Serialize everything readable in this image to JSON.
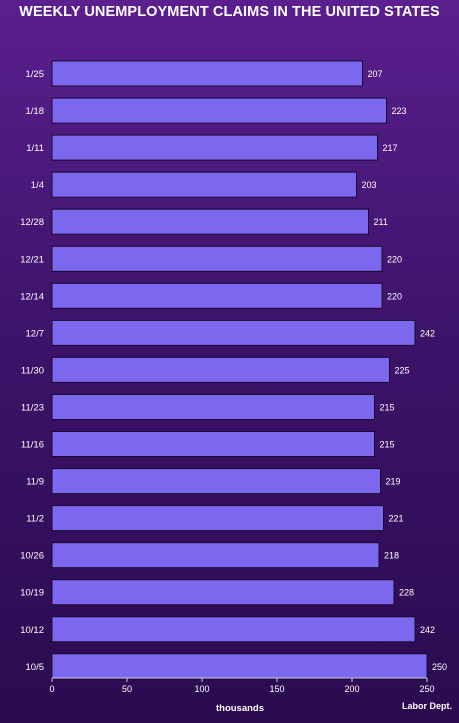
{
  "chart_data": {
    "type": "bar",
    "orientation": "horizontal",
    "title": "WEEKLY UNEMPLOYMENT CLAIMS IN THE UNITED STATES",
    "xlabel": "thousands",
    "ylabel": "",
    "source": "Labor Dept.",
    "categories": [
      "1/25",
      "1/18",
      "1/11",
      "1/4",
      "12/28",
      "12/21",
      "12/14",
      "12/7",
      "11/30",
      "11/23",
      "11/16",
      "11/9",
      "11/2",
      "10/26",
      "10/19",
      "10/12",
      "10/5"
    ],
    "values": [
      207,
      223,
      217,
      203,
      211,
      220,
      220,
      242,
      225,
      215,
      215,
      219,
      221,
      218,
      228,
      242,
      250
    ],
    "xlim": [
      0,
      250
    ],
    "xticks": [
      0,
      50,
      100,
      150,
      200,
      250
    ],
    "grid": false,
    "bar_color": "#7b68ee",
    "bar_stroke": "#1a0a33"
  }
}
